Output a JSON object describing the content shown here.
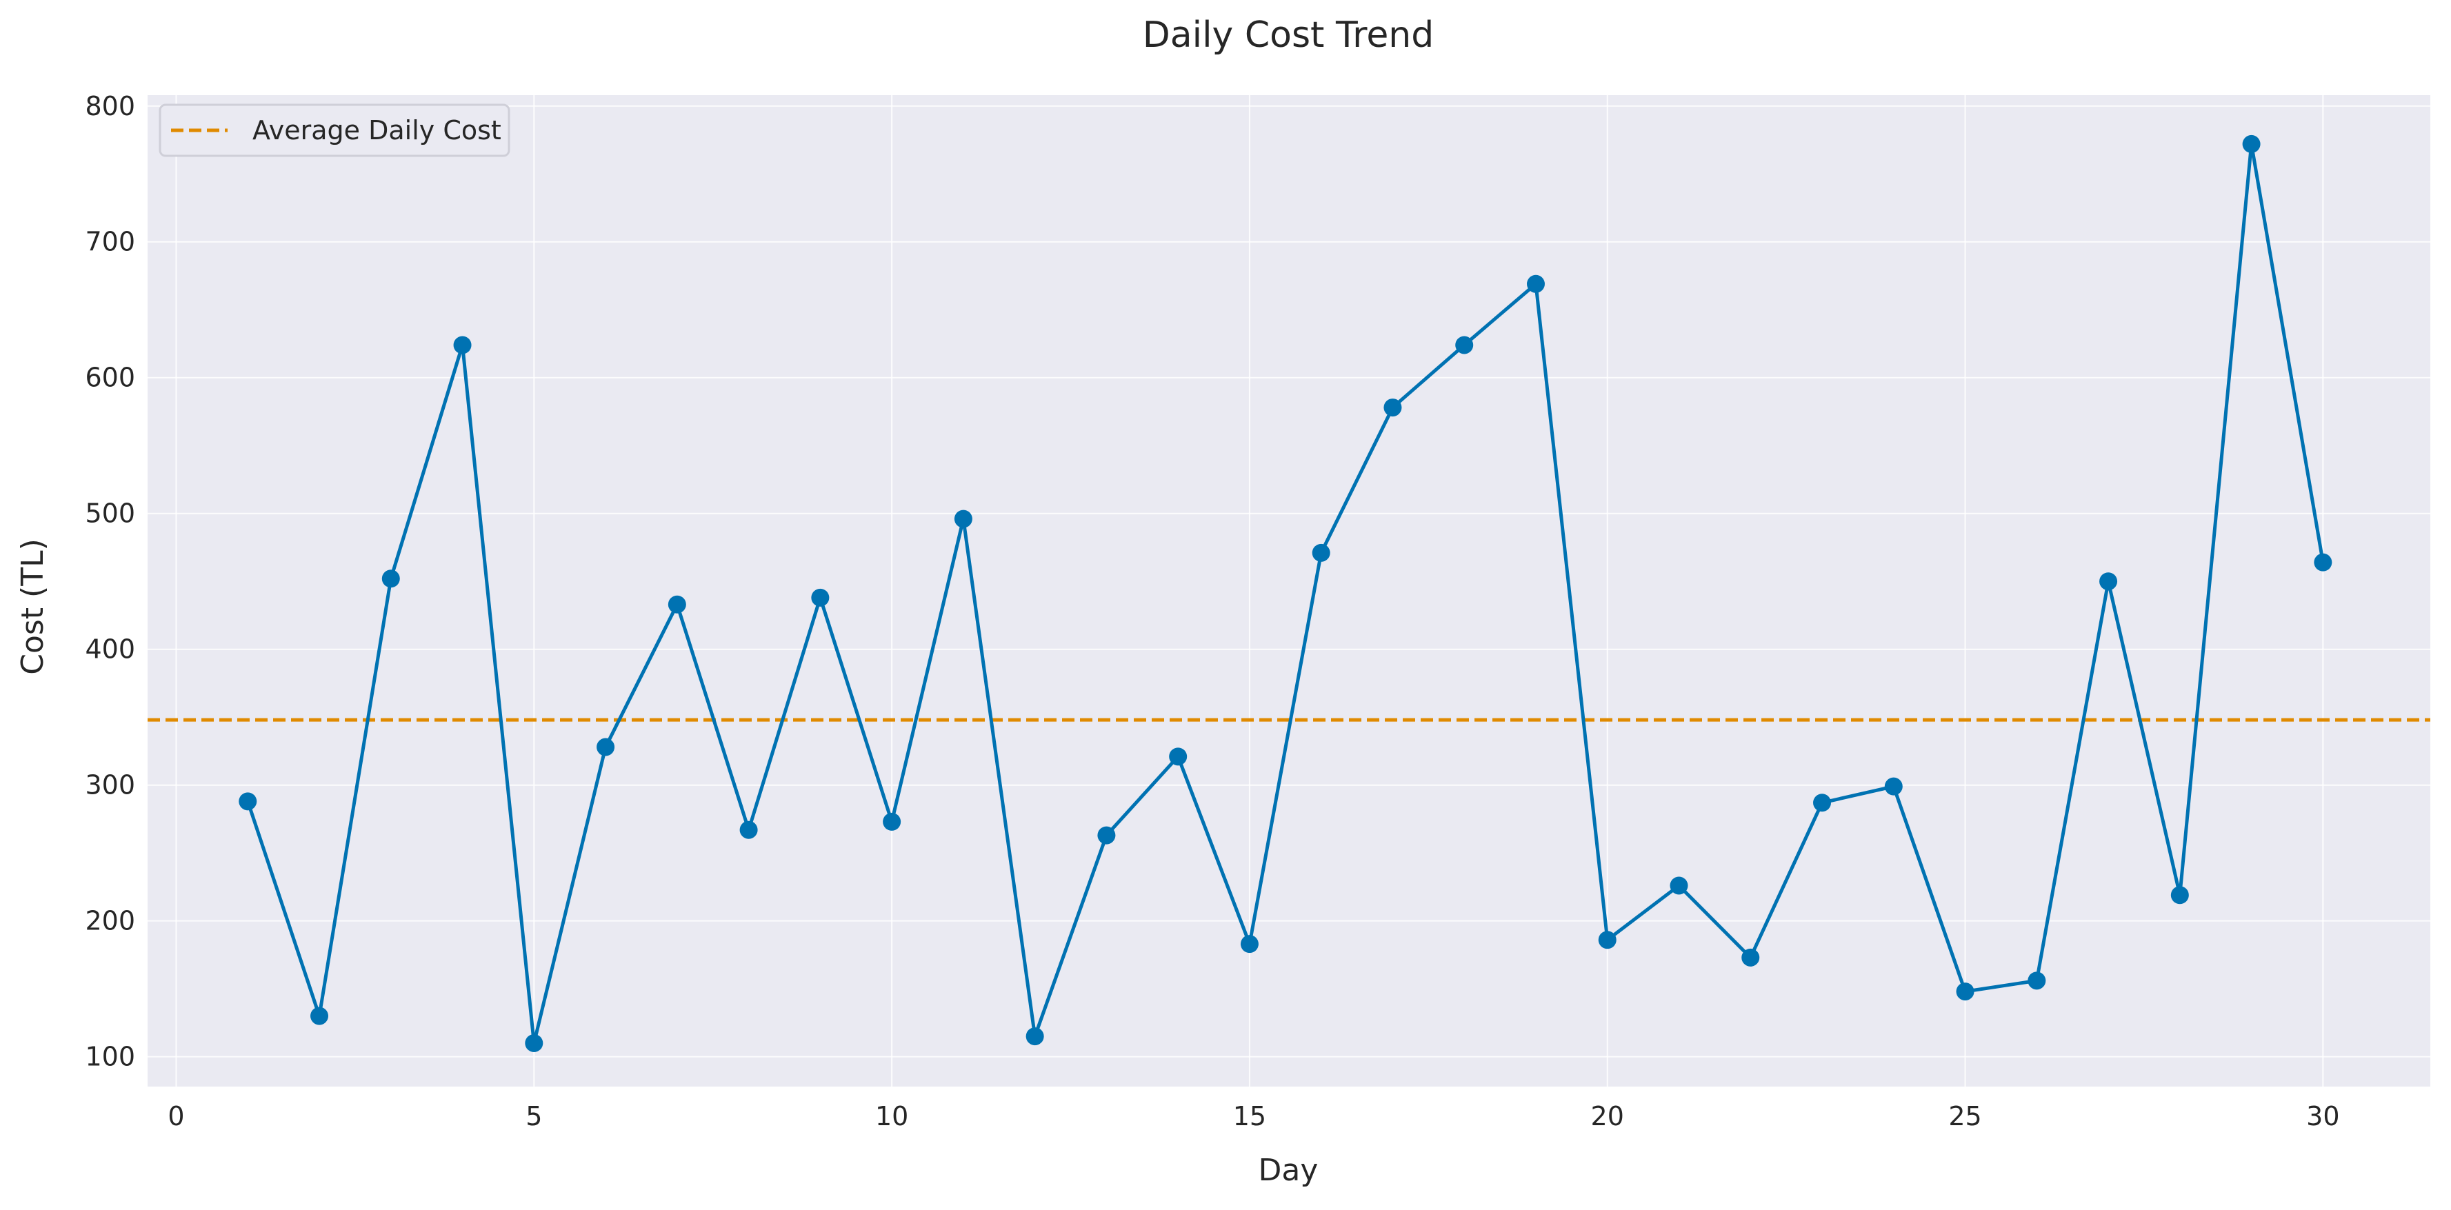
{
  "chart_data": {
    "type": "line",
    "title": "Daily Cost Trend",
    "xlabel": "Day",
    "ylabel": "Cost (TL)",
    "xlim": [
      -0.4,
      31.5
    ],
    "ylim": [
      78,
      808
    ],
    "xticks": [
      0,
      5,
      10,
      15,
      20,
      25,
      30
    ],
    "yticks": [
      100,
      200,
      300,
      400,
      500,
      600,
      700,
      800
    ],
    "grid": true,
    "legend_position": "top-left",
    "colors": {
      "series": "#0072b2",
      "average": "#e08a00",
      "plot_background": "#eaeaf2",
      "grid": "#ffffff"
    },
    "series": [
      {
        "x": [
          1,
          2,
          3,
          4,
          5,
          6,
          7,
          8,
          9,
          10,
          11,
          12,
          13,
          14,
          15,
          16,
          17,
          18,
          19,
          20,
          21,
          22,
          23,
          24,
          25,
          26,
          27,
          28,
          29,
          30
        ],
        "values": [
          288,
          130,
          452,
          624,
          110,
          328,
          433,
          267,
          438,
          273,
          496,
          115,
          263,
          321,
          183,
          471,
          578,
          624,
          669,
          186,
          226,
          173,
          287,
          299,
          148,
          156,
          450,
          219,
          772,
          464
        ]
      }
    ],
    "reference_lines": [
      {
        "name": "Average Daily Cost",
        "orientation": "horizontal",
        "value": 348,
        "style": "dashed"
      }
    ]
  }
}
